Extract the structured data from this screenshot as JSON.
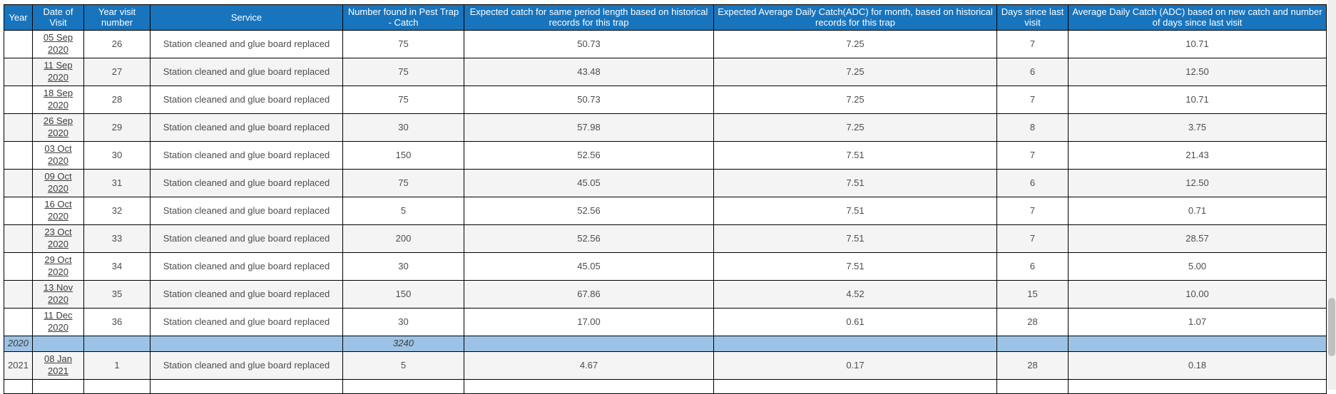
{
  "colors": {
    "header_blue": "#1874bd",
    "summary_blue": "#9cc3e5",
    "row_alt_gray": "#f4f4f4",
    "border_black": "#000000"
  },
  "table": {
    "columns": [
      {
        "key": "year",
        "label": "Year"
      },
      {
        "key": "date",
        "label": "Date of Visit"
      },
      {
        "key": "visit",
        "label": "Year visit number"
      },
      {
        "key": "service",
        "label": "Service"
      },
      {
        "key": "catch",
        "label": "Number found in Pest Trap - Catch"
      },
      {
        "key": "expected_catch",
        "label": "Expected catch for same period length based on historical records for this trap"
      },
      {
        "key": "expected_adc",
        "label": "Expected Average Daily Catch(ADC) for month, based on historical records for this trap"
      },
      {
        "key": "days_since",
        "label": "Days since last visit"
      },
      {
        "key": "adc",
        "label": "Average Daily Catch (ADC) based on new catch and number of days since last visit"
      }
    ],
    "rows": [
      {
        "year": "",
        "date": "05 Sep 2020",
        "visit": "26",
        "service": "Station cleaned and glue board replaced",
        "catch": "75",
        "expected_catch": "50.73",
        "expected_adc": "7.25",
        "days_since": "7",
        "adc": "10.71"
      },
      {
        "year": "",
        "date": "11 Sep 2020",
        "visit": "27",
        "service": "Station cleaned and glue board replaced",
        "catch": "75",
        "expected_catch": "43.48",
        "expected_adc": "7.25",
        "days_since": "6",
        "adc": "12.50"
      },
      {
        "year": "",
        "date": "18 Sep 2020",
        "visit": "28",
        "service": "Station cleaned and glue board replaced",
        "catch": "75",
        "expected_catch": "50.73",
        "expected_adc": "7.25",
        "days_since": "7",
        "adc": "10.71"
      },
      {
        "year": "",
        "date": "26 Sep 2020",
        "visit": "29",
        "service": "Station cleaned and glue board replaced",
        "catch": "30",
        "expected_catch": "57.98",
        "expected_adc": "7.25",
        "days_since": "8",
        "adc": "3.75"
      },
      {
        "year": "",
        "date": "03 Oct 2020",
        "visit": "30",
        "service": "Station cleaned and glue board replaced",
        "catch": "150",
        "expected_catch": "52.56",
        "expected_adc": "7.51",
        "days_since": "7",
        "adc": "21.43"
      },
      {
        "year": "",
        "date": "09 Oct 2020",
        "visit": "31",
        "service": "Station cleaned and glue board replaced",
        "catch": "75",
        "expected_catch": "45.05",
        "expected_adc": "7.51",
        "days_since": "6",
        "adc": "12.50"
      },
      {
        "year": "",
        "date": "16 Oct 2020",
        "visit": "32",
        "service": "Station cleaned and glue board replaced",
        "catch": "5",
        "expected_catch": "52.56",
        "expected_adc": "7.51",
        "days_since": "7",
        "adc": "0.71"
      },
      {
        "year": "",
        "date": "23 Oct 2020",
        "visit": "33",
        "service": "Station cleaned and glue board replaced",
        "catch": "200",
        "expected_catch": "52.56",
        "expected_adc": "7.51",
        "days_since": "7",
        "adc": "28.57"
      },
      {
        "year": "",
        "date": "29 Oct 2020",
        "visit": "34",
        "service": "Station cleaned and glue board replaced",
        "catch": "30",
        "expected_catch": "45.05",
        "expected_adc": "7.51",
        "days_since": "6",
        "adc": "5.00"
      },
      {
        "year": "",
        "date": "13 Nov 2020",
        "visit": "35",
        "service": "Station cleaned and glue board replaced",
        "catch": "150",
        "expected_catch": "67.86",
        "expected_adc": "4.52",
        "days_since": "15",
        "adc": "10.00"
      },
      {
        "year": "",
        "date": "11 Dec 2020",
        "visit": "36",
        "service": "Station cleaned and glue board replaced",
        "catch": "30",
        "expected_catch": "17.00",
        "expected_adc": "0.61",
        "days_since": "28",
        "adc": "1.07"
      },
      {
        "type": "summary",
        "year": "2020",
        "catch_total": "3240"
      },
      {
        "year": "2021",
        "date": "08 Jan 2021",
        "visit": "1",
        "service": "Station cleaned and glue board replaced",
        "catch": "5",
        "expected_catch": "4.67",
        "expected_adc": "0.17",
        "days_since": "28",
        "adc": "0.18"
      }
    ]
  }
}
